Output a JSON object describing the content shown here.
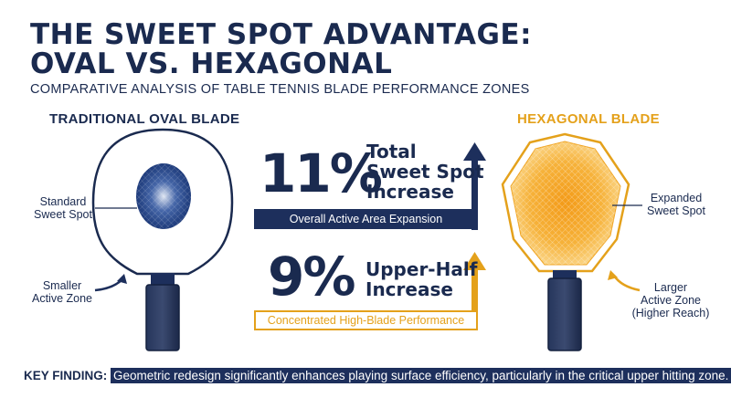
{
  "title": {
    "line1": "THE SWEET SPOT ADVANTAGE:",
    "line2": "OVAL VS. HEXAGONAL"
  },
  "subtitle": "COMPARATIVE ANALYSIS OF TABLE TENNIS BLADE PERFORMANCE ZONES",
  "left_blade": {
    "heading": "TRADITIONAL OVAL BLADE",
    "sweet_spot_label": [
      "Standard",
      "Sweet Spot"
    ],
    "zone_label": [
      "Smaller",
      "Active Zone"
    ]
  },
  "right_blade": {
    "heading": "HEXAGONAL BLADE",
    "sweet_spot_label": [
      "Expanded",
      "Sweet Spot"
    ],
    "zone_label": [
      "Larger",
      "Active Zone",
      "(Higher Reach)"
    ]
  },
  "stats": [
    {
      "value": "11%",
      "label": [
        "Total",
        "Sweet Spot",
        "Increase"
      ],
      "bar_text": "Overall Active Area Expansion"
    },
    {
      "value": "9%",
      "label": [
        "Upper-Half",
        "Increase"
      ],
      "bar_text": "Concentrated High-Blade Performance"
    }
  ],
  "key_finding": {
    "label": "KEY FINDING:",
    "text": "Geometric redesign significantly enhances playing surface efficiency, particularly in the critical upper hitting zone."
  },
  "colors": {
    "navy": "#1d2f5c",
    "gold": "#e4a11b",
    "sweet_blue": "#2b4a8f",
    "sweet_orange": "#f4a623"
  }
}
